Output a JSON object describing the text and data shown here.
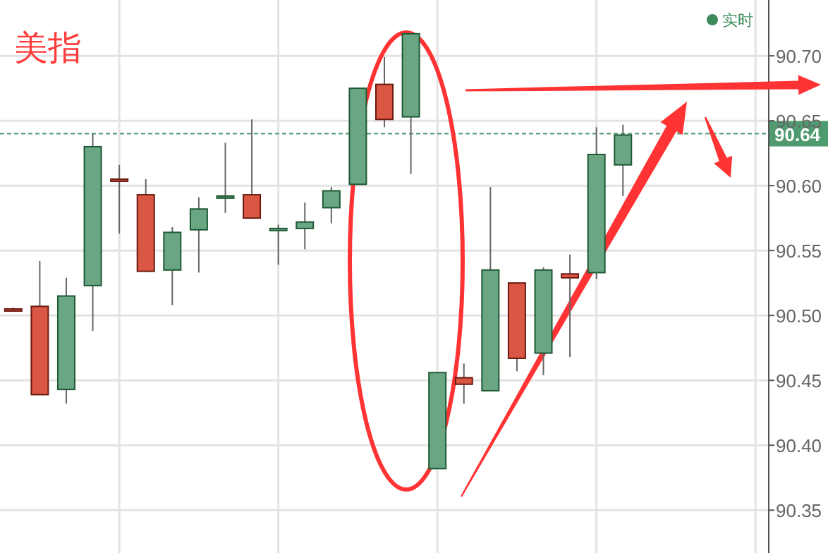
{
  "chart_data": {
    "type": "candlestick",
    "title": "美指",
    "categories": [
      null,
      null,
      null,
      null,
      null,
      null,
      null,
      null,
      null,
      null,
      null,
      null,
      null,
      null,
      null,
      null,
      null,
      null,
      null,
      null,
      null,
      null,
      null,
      null,
      null,
      null,
      null,
      null,
      null
    ],
    "legend_title": "实时",
    "ohlc": [
      [
        90.505,
        90.506,
        90.503,
        90.504
      ],
      [
        90.507,
        90.542,
        90.439,
        90.439
      ],
      [
        90.443,
        90.529,
        90.432,
        90.515
      ],
      [
        90.523,
        90.64,
        90.488,
        90.63
      ],
      [
        90.605,
        90.616,
        90.563,
        90.604
      ],
      [
        90.593,
        90.605,
        90.534,
        90.534
      ],
      [
        90.535,
        90.568,
        90.508,
        90.564
      ],
      [
        90.566,
        90.591,
        90.533,
        90.582
      ],
      [
        90.591,
        90.633,
        90.579,
        90.592
      ],
      [
        90.593,
        90.651,
        90.575,
        90.575
      ],
      [
        90.566,
        90.57,
        90.539,
        90.567
      ],
      [
        90.567,
        90.587,
        90.551,
        90.572
      ],
      [
        90.583,
        90.599,
        90.571,
        90.596
      ],
      [
        90.601,
        90.675,
        90.601,
        90.675
      ],
      [
        90.678,
        90.699,
        90.645,
        90.651
      ],
      [
        90.653,
        90.717,
        90.609,
        90.717
      ],
      [
        90.382,
        90.456,
        90.382,
        90.456
      ],
      [
        90.452,
        90.463,
        90.432,
        90.447
      ],
      [
        90.442,
        90.599,
        90.442,
        90.535
      ],
      [
        90.525,
        90.525,
        90.457,
        90.467
      ],
      [
        90.471,
        90.537,
        90.454,
        90.535
      ],
      [
        90.532,
        90.547,
        90.468,
        90.529
      ],
      [
        90.533,
        90.645,
        90.528,
        90.624
      ],
      [
        90.616,
        90.647,
        90.592,
        90.639
      ],
      null,
      null,
      null,
      null,
      null
    ],
    "colors": [
      "#d95743",
      "#d95743",
      "#6aa684",
      "#6aa684",
      "#d95743",
      "#d95743",
      "#6aa684",
      "#6aa684",
      "#6aa684",
      "#d95743",
      "#6aa684",
      "#6aa684",
      "#6aa684",
      "#6aa684",
      "#d95743",
      "#6aa684",
      "#6aa684",
      "#d95743",
      "#6aa684",
      "#d95743",
      "#6aa684",
      "#d95743",
      "#6aa684",
      "#6aa684",
      null,
      null,
      null,
      null,
      null
    ],
    "ylim": [
      90.317,
      90.743
    ],
    "yticks": [
      90.35,
      {
        "value": 90.4,
        "label": "90.40"
      },
      90.45,
      {
        "value": 90.5,
        "label": "90.50"
      },
      90.55,
      {
        "value": 90.6,
        "label": "90.60"
      },
      90.65,
      {
        "value": 90.7,
        "label": "90.70"
      }
    ],
    "ref_lines": [
      {
        "axis": "y",
        "value": 90.64,
        "label": "90.64",
        "color": "#4f9a6f",
        "line_style": "dashed"
      }
    ],
    "grid": true,
    "legend": "top right"
  }
}
